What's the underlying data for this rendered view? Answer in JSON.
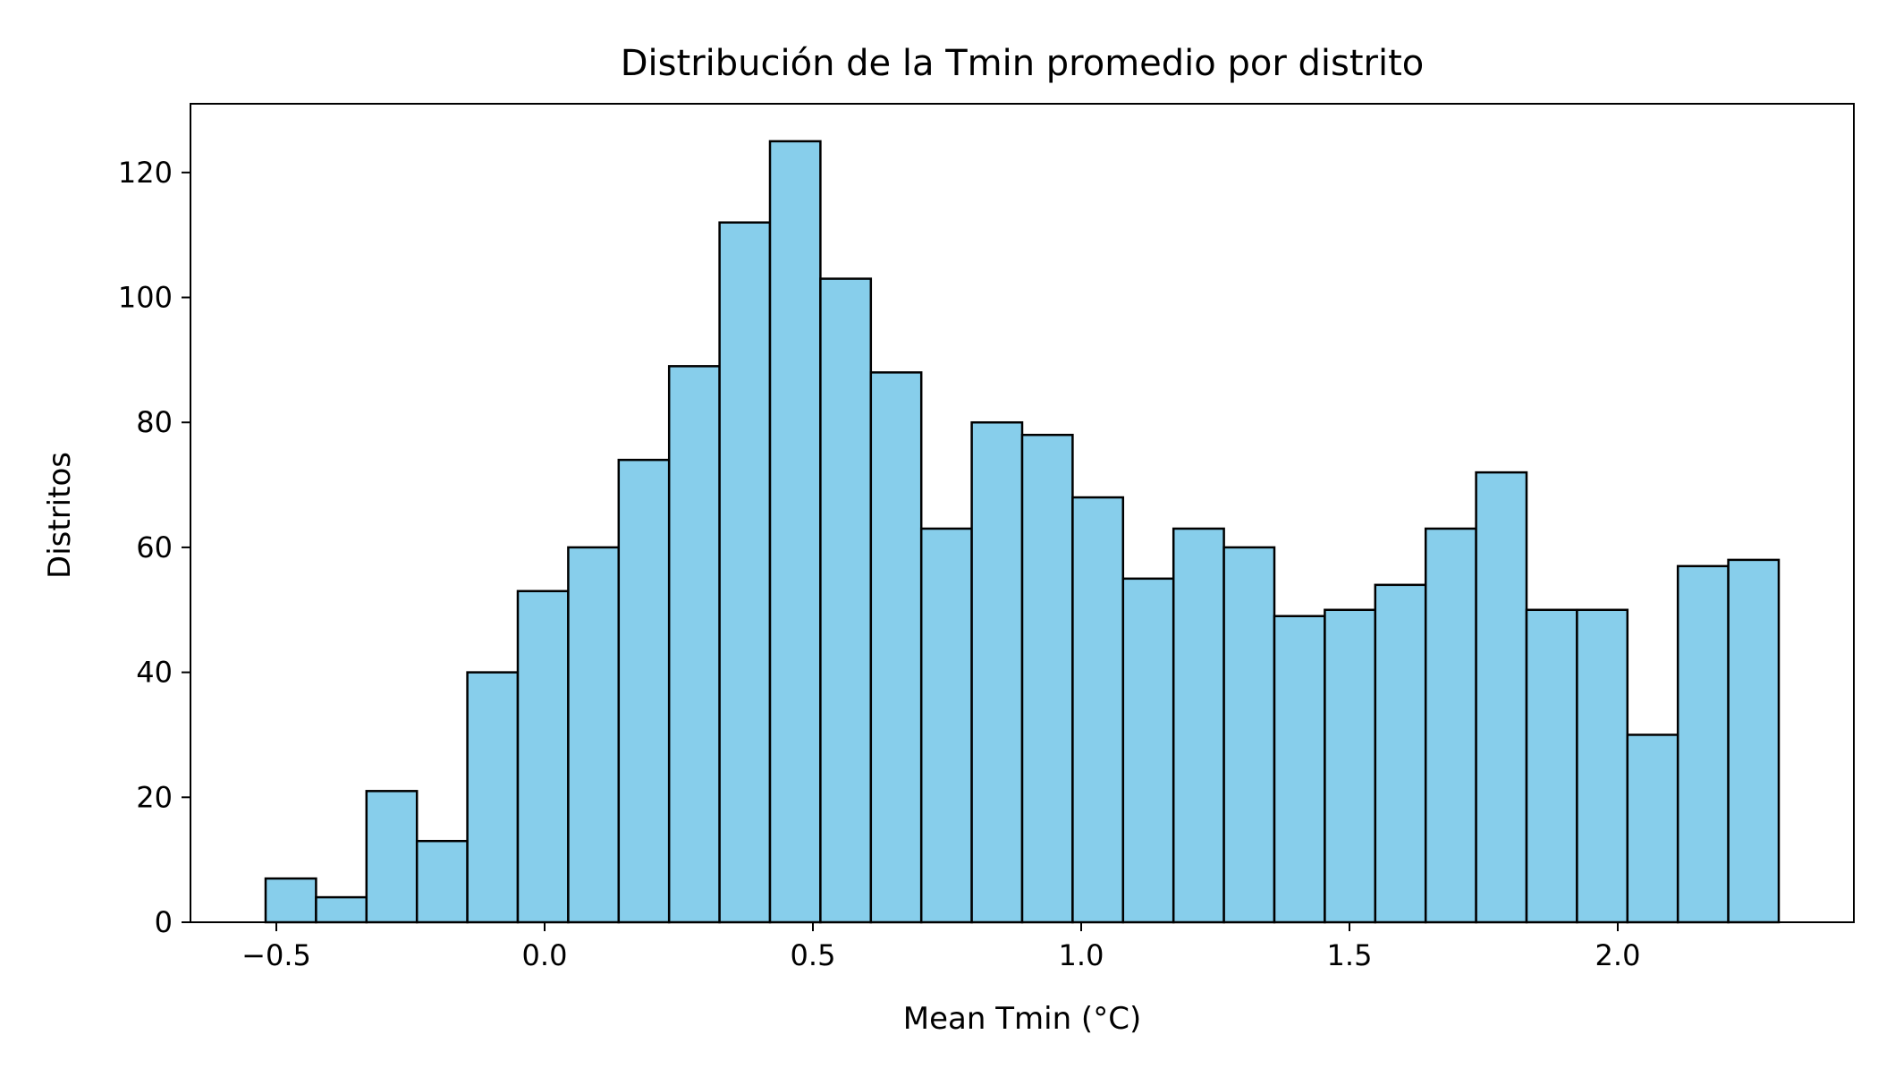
{
  "chart_data": {
    "type": "bar",
    "title": "Distribución de la Tmin promedio por distrito",
    "xlabel": "Mean Tmin (°C)",
    "ylabel": "Distritos",
    "bin_start": -0.52,
    "bin_width": 0.094,
    "values": [
      7,
      4,
      21,
      13,
      40,
      53,
      60,
      74,
      89,
      112,
      125,
      103,
      88,
      63,
      80,
      78,
      68,
      55,
      63,
      60,
      49,
      50,
      54,
      63,
      72,
      50,
      50,
      30,
      57,
      58
    ],
    "xlim": [
      -0.66,
      2.44
    ],
    "ylim": [
      0,
      131
    ],
    "x_ticks": [
      -0.5,
      0.0,
      0.5,
      1.0,
      1.5,
      2.0
    ],
    "x_tick_labels": [
      "−0.5",
      "0.0",
      "0.5",
      "1.0",
      "1.5",
      "2.0"
    ],
    "y_ticks": [
      0,
      20,
      40,
      60,
      80,
      100,
      120
    ],
    "y_tick_labels": [
      "0",
      "20",
      "40",
      "60",
      "80",
      "100",
      "120"
    ],
    "grid": false,
    "bar_color": "#87CEEB",
    "edge_color": "#000000"
  }
}
